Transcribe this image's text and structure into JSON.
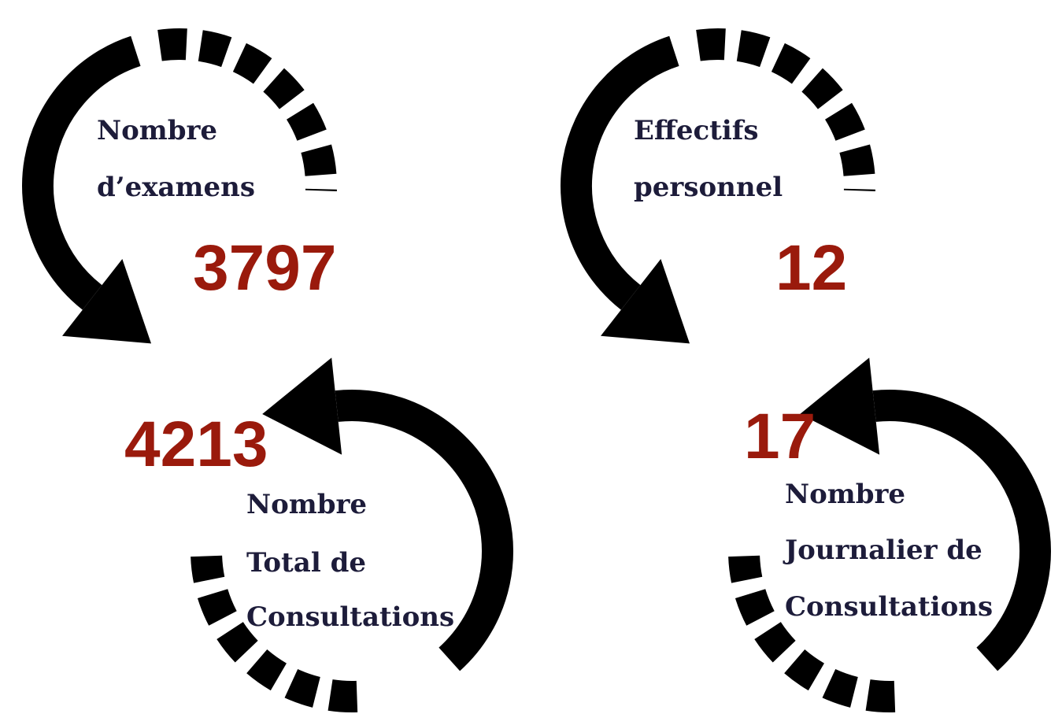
{
  "stats": [
    {
      "label_lines": [
        "Nombre",
        "d’examens"
      ],
      "value": "3797"
    },
    {
      "label_lines": [
        "Nombre",
        "Total de",
        "Consultations"
      ],
      "value": "4213"
    },
    {
      "label_lines": [
        "Effectifs",
        "personnel"
      ],
      "value": "12"
    },
    {
      "label_lines": [
        "Nombre",
        "Journalier de",
        "Consultations"
      ],
      "value": "17"
    }
  ]
}
